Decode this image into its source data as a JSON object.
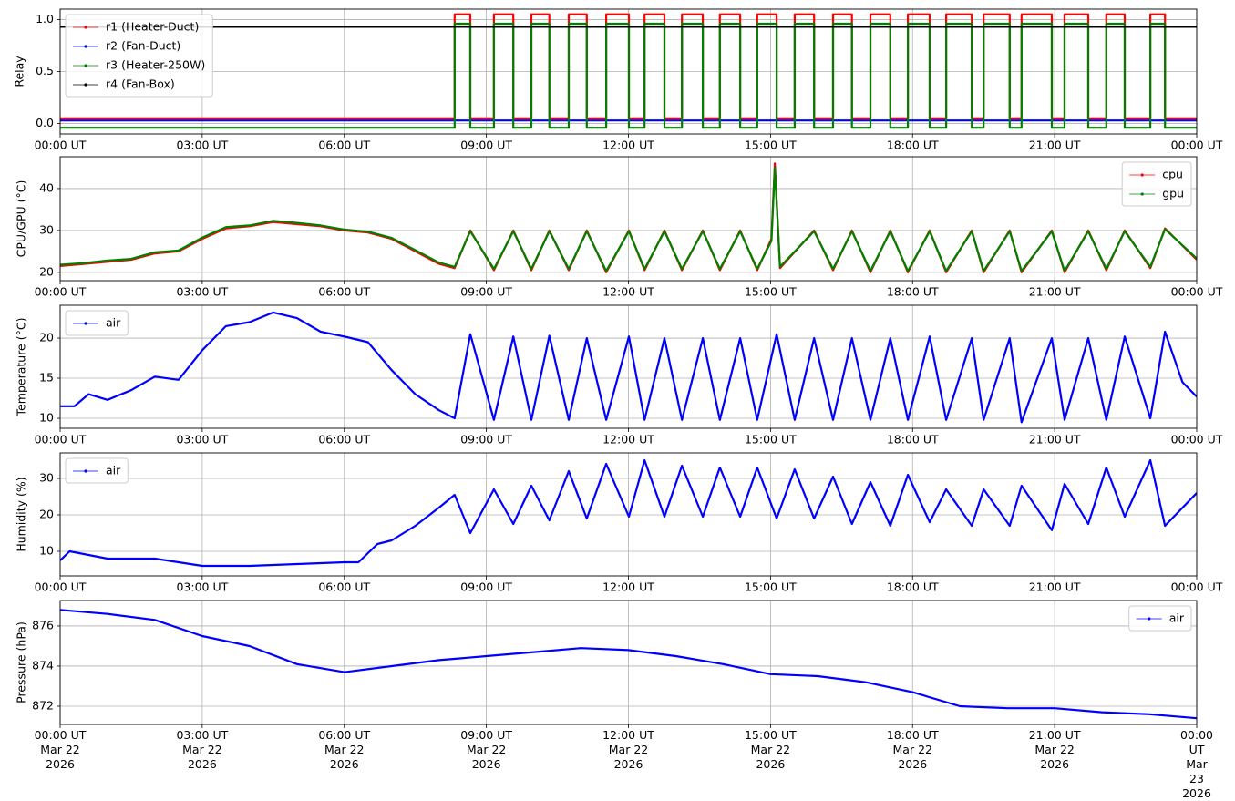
{
  "chart_data": [
    {
      "type": "line",
      "ylabel": "Relay",
      "xlim": [
        0,
        24
      ],
      "xticks": [
        {
          "value": 0,
          "label": "00:00 UT"
        },
        {
          "value": 3,
          "label": "03:00 UT"
        },
        {
          "value": 6,
          "label": "06:00 UT"
        },
        {
          "value": 9,
          "label": "09:00 UT"
        },
        {
          "value": 12,
          "label": "12:00 UT"
        },
        {
          "value": 15,
          "label": "15:00 UT"
        },
        {
          "value": 18,
          "label": "18:00 UT"
        },
        {
          "value": 21,
          "label": "21:00 UT"
        },
        {
          "value": 24,
          "label": "00:00 UT"
        }
      ],
      "ylim": [
        -0.1,
        1.1
      ],
      "yticks": [
        {
          "value": 0,
          "label": "0.0"
        },
        {
          "value": 0.5,
          "label": "0.5"
        },
        {
          "value": 1,
          "label": "1.0"
        }
      ],
      "grid": true,
      "legend": "upper left",
      "x": [
        0,
        8.33,
        8.33,
        8.66,
        8.66,
        9.16,
        9.16,
        9.57,
        9.57,
        9.95,
        9.95,
        10.33,
        10.33,
        10.74,
        10.74,
        11.12,
        11.12,
        11.53,
        11.53,
        12.01,
        12.01,
        12.34,
        12.34,
        12.76,
        12.76,
        13.13,
        13.13,
        13.57,
        13.57,
        13.93,
        13.93,
        14.36,
        14.36,
        14.72,
        14.72,
        15.13,
        15.13,
        15.51,
        15.51,
        15.92,
        15.92,
        16.32,
        16.32,
        16.72,
        16.72,
        17.11,
        17.11,
        17.53,
        17.53,
        17.9,
        17.9,
        18.36,
        18.36,
        18.71,
        18.71,
        19.25,
        19.25,
        19.5,
        19.5,
        20.05,
        20.05,
        20.3,
        20.3,
        20.94,
        20.94,
        21.21,
        21.21,
        21.71,
        21.71,
        22.09,
        22.09,
        22.48,
        22.48,
        23.02,
        23.02,
        23.33,
        23.33,
        24
      ],
      "series": [
        {
          "name": "r1 (Heater-Duct)",
          "color": "#ff0000",
          "values": [
            0.05,
            0.05,
            1.05,
            1.05,
            0.05,
            0.05,
            1.05,
            1.05,
            0.05,
            0.05,
            1.05,
            1.05,
            0.05,
            0.05,
            1.05,
            1.05,
            0.05,
            0.05,
            1.05,
            1.05,
            0.05,
            0.05,
            1.05,
            1.05,
            0.05,
            0.05,
            1.05,
            1.05,
            0.05,
            0.05,
            1.05,
            1.05,
            0.05,
            0.05,
            1.05,
            1.05,
            0.05,
            0.05,
            1.05,
            1.05,
            0.05,
            0.05,
            1.05,
            1.05,
            0.05,
            0.05,
            1.05,
            1.05,
            0.05,
            0.05,
            1.05,
            1.05,
            0.05,
            0.05,
            1.05,
            1.05,
            0.05,
            0.05,
            1.05,
            1.05,
            0.05,
            0.05,
            1.05,
            1.05,
            0.05,
            0.05,
            1.05,
            1.05,
            0.05,
            0.05,
            1.05,
            1.05,
            0.05,
            0.05,
            1.05,
            1.05,
            0.05,
            0.05
          ]
        },
        {
          "name": "r2 (Fan-Duct)",
          "color": "#0000ff",
          "x": [
            0,
            24
          ],
          "values": [
            0.03,
            0.03
          ]
        },
        {
          "name": "r3 (Heater-250W)",
          "color": "#008000",
          "values": [
            -0.04,
            -0.04,
            0.96,
            0.96,
            -0.04,
            -0.04,
            0.96,
            0.96,
            -0.04,
            -0.04,
            0.96,
            0.96,
            -0.04,
            -0.04,
            0.96,
            0.96,
            -0.04,
            -0.04,
            0.96,
            0.96,
            -0.04,
            -0.04,
            0.96,
            0.96,
            -0.04,
            -0.04,
            0.96,
            0.96,
            -0.04,
            -0.04,
            0.96,
            0.96,
            -0.04,
            -0.04,
            0.96,
            0.96,
            -0.04,
            -0.04,
            0.96,
            0.96,
            -0.04,
            -0.04,
            0.96,
            0.96,
            -0.04,
            -0.04,
            0.96,
            0.96,
            -0.04,
            -0.04,
            0.96,
            0.96,
            -0.04,
            -0.04,
            0.96,
            0.96,
            -0.04,
            -0.04,
            0.96,
            0.96,
            -0.04,
            -0.04,
            0.96,
            0.96,
            -0.04,
            -0.04,
            0.96,
            0.96,
            -0.04,
            -0.04,
            0.96,
            0.96,
            -0.04,
            -0.04,
            0.96,
            0.96,
            -0.04,
            -0.04
          ]
        },
        {
          "name": "r4 (Fan-Box)",
          "color": "#000000",
          "x": [
            0,
            24
          ],
          "values": [
            0.93,
            0.93
          ]
        }
      ]
    },
    {
      "type": "line",
      "ylabel": "CPU/GPU (°C)",
      "xlim": [
        0,
        24
      ],
      "xticks": [
        {
          "value": 0,
          "label": "00:00 UT"
        },
        {
          "value": 3,
          "label": "03:00 UT"
        },
        {
          "value": 6,
          "label": "06:00 UT"
        },
        {
          "value": 9,
          "label": "09:00 UT"
        },
        {
          "value": 12,
          "label": "12:00 UT"
        },
        {
          "value": 15,
          "label": "15:00 UT"
        },
        {
          "value": 18,
          "label": "18:00 UT"
        },
        {
          "value": 21,
          "label": "21:00 UT"
        },
        {
          "value": 24,
          "label": "00:00 UT"
        }
      ],
      "ylim": [
        18,
        47.6
      ],
      "yticks": [
        20,
        30,
        40
      ],
      "grid": true,
      "legend": "upper right",
      "x": [
        0,
        0.5,
        1,
        1.5,
        2,
        2.5,
        3,
        3.5,
        4,
        4.5,
        5,
        5.5,
        6,
        6.5,
        7,
        7.5,
        8,
        8.33,
        8.66,
        9.16,
        9.57,
        9.95,
        10.33,
        10.74,
        11.12,
        11.53,
        12.01,
        12.34,
        12.76,
        13.13,
        13.57,
        13.93,
        14.36,
        14.72,
        15.02,
        15.09,
        15.2,
        15.92,
        16.32,
        16.72,
        17.11,
        17.53,
        17.9,
        18.36,
        18.71,
        19.25,
        19.5,
        20.05,
        20.3,
        20.94,
        21.21,
        21.71,
        22.09,
        22.48,
        23.02,
        23.33,
        24
      ],
      "series": [
        {
          "name": "cpu",
          "color": "#ff0000",
          "values": [
            21.5,
            22,
            22.5,
            23,
            24.5,
            25,
            28,
            30.5,
            31,
            32,
            31.5,
            31,
            30,
            29.5,
            28,
            25,
            22,
            21,
            30,
            20.5,
            30,
            20.5,
            30,
            20.5,
            30,
            20,
            30,
            20.5,
            30,
            20.5,
            30,
            20.5,
            30,
            20.5,
            28,
            46,
            21,
            30,
            20.5,
            30,
            20,
            30,
            20,
            30,
            20,
            30,
            20,
            30,
            20,
            30,
            20,
            30,
            20.5,
            30,
            21,
            30.5,
            23
          ]
        },
        {
          "name": "gpu",
          "color": "#008000",
          "values": [
            21.8,
            22.2,
            22.8,
            23.2,
            24.8,
            25.2,
            28.3,
            30.8,
            31.2,
            32.3,
            31.8,
            31.2,
            30.2,
            29.7,
            28.2,
            25.3,
            22.3,
            21.3,
            29.8,
            20.8,
            29.8,
            20.8,
            29.8,
            20.8,
            29.8,
            20.3,
            29.8,
            20.8,
            29.8,
            20.8,
            29.8,
            20.8,
            29.8,
            20.8,
            27.5,
            45,
            21.3,
            29.8,
            20.8,
            29.8,
            20.3,
            29.8,
            20.3,
            29.8,
            20.3,
            29.8,
            20.3,
            29.8,
            20.3,
            29.8,
            20.3,
            29.8,
            20.8,
            29.8,
            21.3,
            30.3,
            23.3
          ]
        }
      ]
    },
    {
      "type": "line",
      "ylabel": "Temperature (°C)",
      "xlim": [
        0,
        24
      ],
      "xticks": [
        {
          "value": 0,
          "label": "00:00 UT"
        },
        {
          "value": 3,
          "label": "03:00 UT"
        },
        {
          "value": 6,
          "label": "06:00 UT"
        },
        {
          "value": 9,
          "label": "09:00 UT"
        },
        {
          "value": 12,
          "label": "12:00 UT"
        },
        {
          "value": 15,
          "label": "15:00 UT"
        },
        {
          "value": 18,
          "label": "18:00 UT"
        },
        {
          "value": 21,
          "label": "21:00 UT"
        },
        {
          "value": 24,
          "label": "00:00 UT"
        }
      ],
      "ylim": [
        8.75,
        24.1
      ],
      "yticks": [
        10,
        15,
        20
      ],
      "grid": true,
      "legend": "upper left",
      "x": [
        0,
        0.3,
        0.6,
        1,
        1.5,
        2,
        2.5,
        3,
        3.5,
        4,
        4.5,
        5,
        5.5,
        6,
        6.5,
        7,
        7.5,
        8,
        8.33,
        8.66,
        9.16,
        9.57,
        9.95,
        10.33,
        10.74,
        11.12,
        11.53,
        12.01,
        12.34,
        12.76,
        13.13,
        13.57,
        13.93,
        14.36,
        14.72,
        15.13,
        15.51,
        15.92,
        16.32,
        16.72,
        17.11,
        17.53,
        17.9,
        18.36,
        18.71,
        19.25,
        19.5,
        20.05,
        20.3,
        20.94,
        21.21,
        21.71,
        22.09,
        22.48,
        23.02,
        23.33,
        23.7,
        24
      ],
      "series": [
        {
          "name": "air",
          "color": "#0000ff",
          "values": [
            11.5,
            11.5,
            13,
            12.3,
            13.5,
            15.2,
            14.8,
            18.5,
            21.5,
            22,
            23.2,
            22.5,
            20.8,
            20.2,
            19.5,
            16,
            13,
            11,
            10,
            20.5,
            9.8,
            20.2,
            9.8,
            20.3,
            9.8,
            20,
            9.8,
            20.2,
            9.8,
            20,
            9.8,
            20,
            9.8,
            20,
            9.8,
            20.5,
            9.8,
            20,
            9.8,
            20,
            9.8,
            20,
            9.8,
            20.2,
            9.8,
            20,
            9.8,
            20,
            9.5,
            20,
            9.8,
            20,
            9.8,
            20.2,
            10,
            20.8,
            14.5,
            12.7
          ]
        }
      ]
    },
    {
      "type": "line",
      "ylabel": "Humidity (%)",
      "xlim": [
        0,
        24
      ],
      "xticks": [
        {
          "value": 0,
          "label": "00:00 UT"
        },
        {
          "value": 3,
          "label": "03:00 UT"
        },
        {
          "value": 6,
          "label": "06:00 UT"
        },
        {
          "value": 9,
          "label": "09:00 UT"
        },
        {
          "value": 12,
          "label": "12:00 UT"
        },
        {
          "value": 15,
          "label": "15:00 UT"
        },
        {
          "value": 18,
          "label": "18:00 UT"
        },
        {
          "value": 21,
          "label": "21:00 UT"
        },
        {
          "value": 24,
          "label": "00:00 UT"
        }
      ],
      "ylim": [
        3.25,
        37
      ],
      "yticks": [
        10,
        20,
        30
      ],
      "grid": true,
      "legend": "upper left",
      "x": [
        0,
        0.2,
        1,
        2,
        3,
        4,
        5,
        6,
        6.3,
        6.7,
        7,
        7.5,
        8,
        8.33,
        8.66,
        9.16,
        9.57,
        9.95,
        10.33,
        10.74,
        11.12,
        11.53,
        12.01,
        12.34,
        12.76,
        13.13,
        13.57,
        13.93,
        14.36,
        14.72,
        15.13,
        15.51,
        15.92,
        16.32,
        16.72,
        17.11,
        17.53,
        17.9,
        18.36,
        18.71,
        19.25,
        19.5,
        20.05,
        20.3,
        20.94,
        21.21,
        21.71,
        22.09,
        22.48,
        23.02,
        23.33,
        24
      ],
      "series": [
        {
          "name": "air",
          "color": "#0000ff",
          "values": [
            7.5,
            10,
            8,
            8,
            6,
            6,
            6.5,
            7,
            7,
            12,
            13,
            17,
            22,
            25.5,
            15,
            27,
            17.5,
            28,
            18.5,
            32,
            19,
            34,
            19.5,
            35,
            19.5,
            33.5,
            19.5,
            33,
            19.5,
            33,
            19,
            32.5,
            19,
            30.5,
            17.5,
            29,
            17,
            31,
            18,
            27,
            17,
            27,
            17,
            28,
            15.8,
            28.5,
            17.5,
            33,
            19.5,
            35,
            17,
            26
          ]
        }
      ]
    },
    {
      "type": "line",
      "ylabel": "Pressure (hPa)",
      "xlim": [
        0,
        24
      ],
      "xticks": [
        {
          "value": 0,
          "label": "00:00 UT\nMar 22\n2026"
        },
        {
          "value": 3,
          "label": "03:00 UT\nMar 22\n2026"
        },
        {
          "value": 6,
          "label": "06:00 UT\nMar 22\n2026"
        },
        {
          "value": 9,
          "label": "09:00 UT\nMar 22\n2026"
        },
        {
          "value": 12,
          "label": "12:00 UT\nMar 22\n2026"
        },
        {
          "value": 15,
          "label": "15:00 UT\nMar 22\n2026"
        },
        {
          "value": 18,
          "label": "18:00 UT\nMar 22\n2026"
        },
        {
          "value": 21,
          "label": "21:00 UT\nMar 22\n2026"
        },
        {
          "value": 24,
          "label": "00:00 UT\nMar 23\n2026"
        }
      ],
      "ylim": [
        871.09,
        877.27
      ],
      "yticks": [
        872,
        874,
        876
      ],
      "grid": true,
      "legend": "upper right",
      "x": [
        0,
        1,
        2,
        3,
        4,
        5,
        6,
        7,
        8,
        9,
        10,
        11,
        12,
        13,
        14,
        15,
        16,
        17,
        18,
        19,
        20,
        21,
        22,
        23,
        24
      ],
      "series": [
        {
          "name": "air",
          "color": "#0000ff",
          "values": [
            876.8,
            876.6,
            876.3,
            875.5,
            875,
            874.1,
            873.7,
            874,
            874.3,
            874.5,
            874.7,
            874.9,
            874.8,
            874.5,
            874.1,
            873.6,
            873.5,
            873.2,
            872.7,
            872,
            871.9,
            871.9,
            871.7,
            871.6,
            871.4
          ]
        }
      ]
    }
  ]
}
